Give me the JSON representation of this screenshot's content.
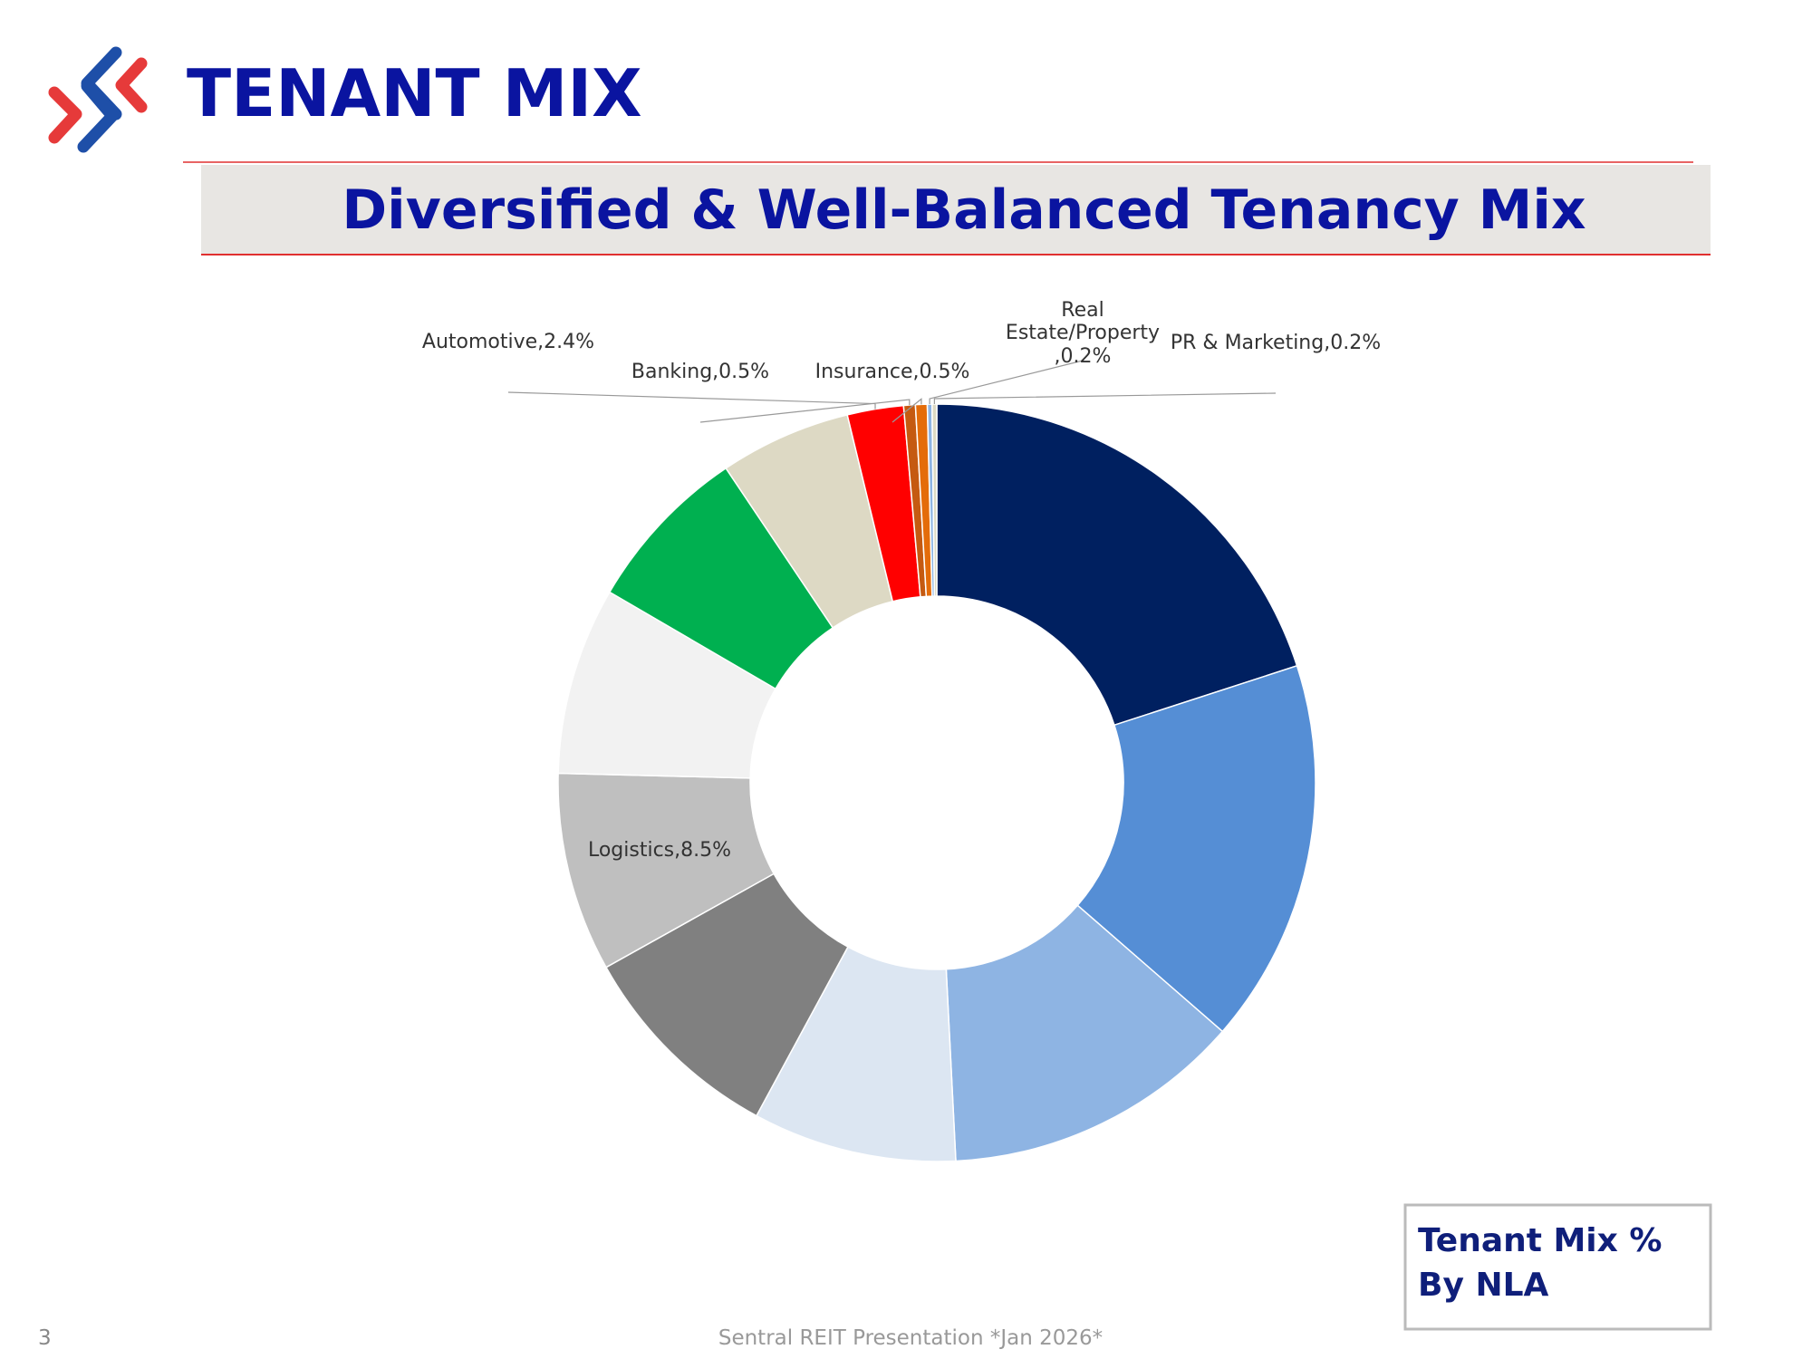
{
  "header": {
    "title": "TENANT MIX",
    "subtitle": "Diversified & Well-Balanced Tenancy Mix"
  },
  "chart_data": {
    "type": "pie",
    "title": "Tenant Mix % By NLA",
    "values": [
      20.0,
      16.4,
      12.8,
      8.7,
      9.0,
      8.5,
      8.0,
      7.2,
      5.6,
      2.4,
      0.5,
      0.5,
      0.2,
      0.2
    ],
    "value_labels": [
      null,
      null,
      null,
      null,
      null,
      "Logistics,8.5%",
      null,
      null,
      null,
      "Automotive,2.4%",
      "Banking,0.5%",
      "Insurance,0.5%",
      "Real Estate/Property,0.2%",
      "PR & Marketing,0.2%"
    ],
    "colors": [
      "#002060",
      "#558ed5",
      "#8eb4e3",
      "#dce6f2",
      "#808080",
      "#bfbfbf",
      "#f2f2f2",
      "#00b050",
      "#ddd9c4",
      "#ff0000",
      "#c55a11",
      "#e46c0a",
      "#8eb4e3",
      "#ddd9c4"
    ]
  },
  "footer": {
    "page": "3",
    "text": "Sentral REIT Presentation *Jan 2026*"
  }
}
